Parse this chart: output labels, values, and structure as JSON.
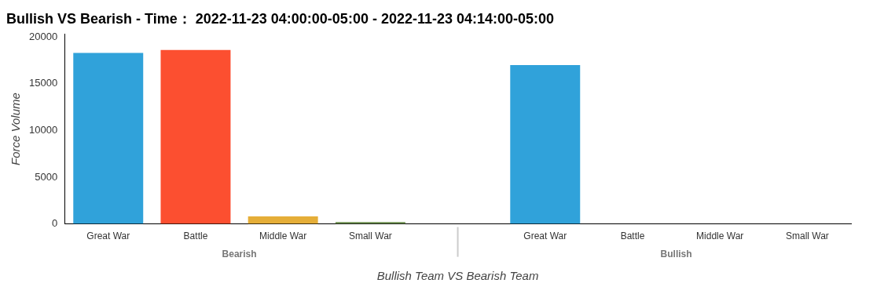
{
  "chart_data": {
    "type": "bar",
    "title": "Bullish VS Bearish - Time： 2022-11-23 04:00:00-05:00 - 2022-11-23 04:14:00-05:00",
    "xlabel": "Bullish Team VS Bearish Team",
    "ylabel": "Force Volume",
    "categories": [
      "Great War",
      "Battle",
      "Middle War",
      "Small War",
      null,
      "Great War",
      "Battle",
      "Middle War",
      "Small War"
    ],
    "values": [
      18300,
      18600,
      800,
      200,
      null,
      17000,
      0,
      0,
      0
    ],
    "colors": [
      "#30a2da",
      "#fc4f30",
      "#e5ae38",
      "#6d904f",
      "#ffffff",
      "#30a2da",
      "#fc4f30",
      "#e5ae38",
      "#6d904f"
    ],
    "annotations": [
      "Bearish",
      "Bullish"
    ],
    "ylim": [
      0,
      20300
    ],
    "yticks": [
      0,
      5000,
      10000,
      15000,
      20000
    ],
    "grid": false,
    "legend": false
  }
}
